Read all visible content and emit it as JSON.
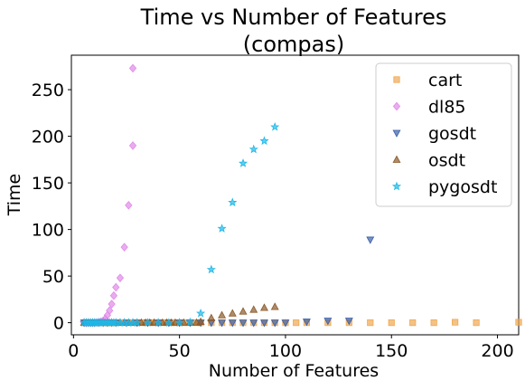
{
  "chart_data": {
    "type": "scatter",
    "title_line1": "Time vs Number of Features",
    "title_line2": "(compas)",
    "xlabel": "Number of Features",
    "ylabel": "Time",
    "xlim": [
      -1,
      210
    ],
    "ylim": [
      -13,
      287
    ],
    "xticks": [
      0,
      50,
      100,
      150,
      200
    ],
    "yticks": [
      0,
      50,
      100,
      150,
      200,
      250
    ],
    "legend_position": "top-right",
    "series": [
      {
        "name": "cart",
        "color": "#f0a850",
        "marker": "square",
        "x": [
          5,
          6,
          7,
          8,
          9,
          10,
          11,
          12,
          13,
          14,
          15,
          16,
          17,
          18,
          19,
          20,
          22,
          24,
          26,
          28,
          30,
          32,
          34,
          36,
          38,
          40,
          42,
          44,
          46,
          48,
          50,
          52,
          55,
          58,
          60,
          65,
          70,
          75,
          80,
          85,
          90,
          95,
          100,
          105,
          110,
          120,
          130,
          140,
          150,
          160,
          170,
          180,
          190,
          210
        ],
        "y": [
          0,
          0,
          0,
          0,
          0,
          0,
          0,
          0,
          0,
          0,
          0,
          0,
          0,
          0,
          0,
          0,
          0,
          0,
          0,
          0,
          0,
          0,
          0,
          0,
          0,
          0,
          0,
          0,
          0,
          0,
          0,
          0,
          0,
          0,
          0,
          0,
          0,
          0,
          0,
          0,
          0,
          0,
          0,
          0,
          0,
          0,
          0,
          0,
          0,
          0,
          0,
          0.5,
          0,
          0.5
        ]
      },
      {
        "name": "dl85",
        "color": "#e08ae8",
        "marker": "diamond",
        "x": [
          5,
          6,
          7,
          8,
          9,
          10,
          11,
          12,
          13,
          14,
          15,
          16,
          17,
          18,
          19,
          20,
          22,
          24,
          26,
          28
        ],
        "y": [
          0,
          0,
          0,
          0,
          0,
          0,
          0.2,
          0.5,
          1,
          2,
          4,
          8,
          13,
          20,
          29,
          38,
          48,
          81,
          126,
          190
        ],
        "extra_x": [
          28
        ],
        "extra_y": [
          273
        ]
      },
      {
        "name": "gosdt",
        "color": "#3a60a8",
        "marker": "triangle-down",
        "x": [
          5,
          6,
          7,
          8,
          9,
          10,
          12,
          14,
          16,
          18,
          20,
          25,
          30,
          35,
          40,
          45,
          50,
          55,
          60,
          65,
          70,
          75,
          80,
          85,
          90,
          95,
          100,
          110,
          120,
          130,
          140
        ],
        "y": [
          0,
          0,
          0,
          0,
          0,
          0,
          0,
          0,
          0,
          0,
          0,
          0,
          0,
          0,
          0,
          0,
          0,
          0,
          0,
          0,
          0,
          0,
          0,
          0,
          0,
          0,
          0,
          1,
          2,
          2,
          89
        ]
      },
      {
        "name": "osdt",
        "color": "#8b5a2b",
        "marker": "triangle-up",
        "x": [
          5,
          6,
          7,
          8,
          9,
          10,
          12,
          14,
          16,
          18,
          20,
          22,
          24,
          26,
          28,
          30,
          32,
          34,
          36,
          38,
          40,
          42,
          44,
          46,
          48,
          50,
          52,
          55,
          58,
          60,
          65,
          70,
          75,
          80,
          85,
          90,
          95
        ],
        "y": [
          0,
          0,
          0,
          0,
          0,
          0,
          0,
          0,
          0,
          0,
          0,
          0,
          0,
          0,
          0,
          0,
          0,
          0,
          0,
          0,
          0,
          0,
          0,
          0,
          0,
          0,
          0,
          0,
          0,
          1,
          5,
          8,
          10,
          12,
          14,
          16,
          17
        ]
      },
      {
        "name": "pygosdt",
        "color": "#20b8e8",
        "marker": "star",
        "x": [
          5,
          6,
          7,
          8,
          9,
          10,
          11,
          12,
          13,
          14,
          15,
          16,
          17,
          18,
          19,
          20,
          22,
          24,
          26,
          28,
          30,
          35,
          40,
          45,
          50,
          55,
          60,
          65,
          70,
          75,
          80,
          85,
          90,
          95
        ],
        "y": [
          0,
          0,
          0,
          0,
          0,
          0,
          0,
          0,
          0,
          0,
          0,
          0,
          0,
          0,
          0,
          0,
          0,
          0,
          0,
          0,
          0,
          0,
          0,
          0,
          0,
          0.5,
          10,
          57,
          101,
          129,
          171,
          186,
          195,
          210
        ]
      }
    ]
  }
}
